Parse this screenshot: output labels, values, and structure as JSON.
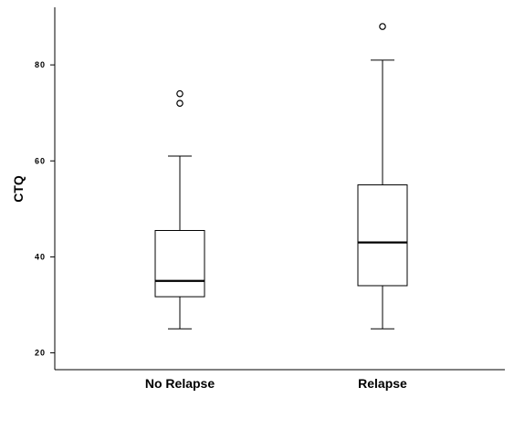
{
  "chart_data": {
    "type": "boxplot",
    "ylabel": "CTQ",
    "xlabel": "",
    "ylim": [
      16.5,
      92
    ],
    "yticks": [
      20,
      40,
      60,
      80
    ],
    "grid": false,
    "categories": [
      "No Relapse",
      "Relapse"
    ],
    "boxes": [
      {
        "category": "No Relapse",
        "min": 25,
        "q1": 31.7,
        "median": 35,
        "q3": 45.5,
        "max": 61,
        "outliers": [
          72,
          74
        ]
      },
      {
        "category": "Relapse",
        "min": 25,
        "q1": 34,
        "median": 43,
        "q3": 55,
        "max": 81,
        "outliers": [
          88
        ]
      }
    ]
  }
}
